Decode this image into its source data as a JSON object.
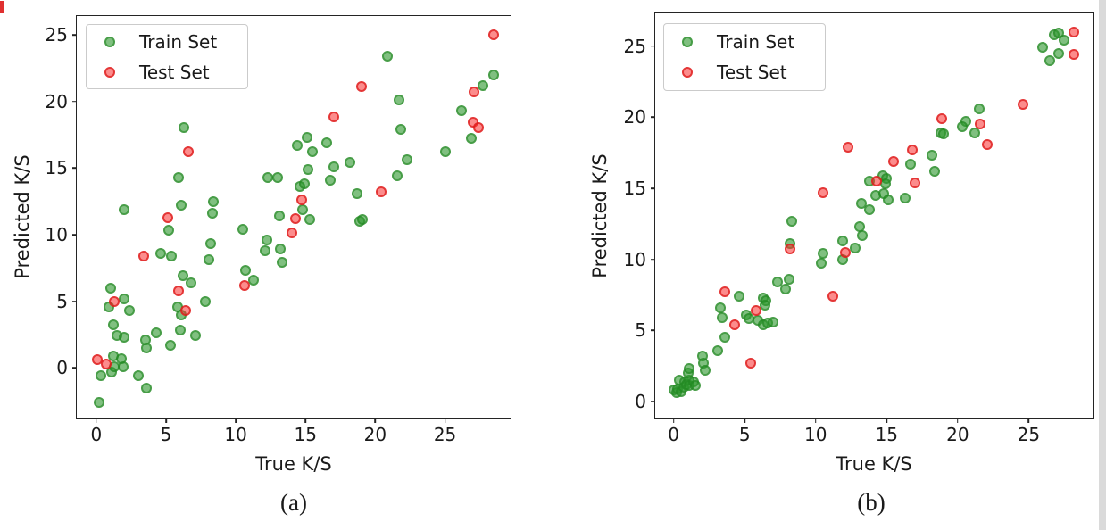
{
  "page": {
    "background": "#ffffff"
  },
  "colors": {
    "train_fill": "#6db96d",
    "train_edge": "#4a9e4a",
    "test_fill": "#f87070",
    "test_edge": "#e03535",
    "axis": "#242424"
  },
  "chart_data": [
    {
      "type": "scatter",
      "panel_caption": "(a)",
      "xlabel": "True K/S",
      "ylabel": "Predicted K/S",
      "xlim": [
        -1.4,
        29.7
      ],
      "ylim": [
        -3.8,
        26.4
      ],
      "xticks": [
        0,
        5,
        10,
        15,
        20,
        25
      ],
      "yticks": [
        0,
        5,
        10,
        15,
        20,
        25
      ],
      "grid": false,
      "legend_position": "upper left",
      "series": [
        {
          "name": "Train Set",
          "role": "train",
          "points": [
            [
              0.2,
              -2.6
            ],
            [
              0.3,
              -0.6
            ],
            [
              1.1,
              -0.3
            ],
            [
              1.3,
              0.1
            ],
            [
              1.9,
              0.1
            ],
            [
              1.2,
              0.9
            ],
            [
              1.8,
              0.7
            ],
            [
              3.0,
              -0.6
            ],
            [
              3.6,
              -1.5
            ],
            [
              1.5,
              2.4
            ],
            [
              2.0,
              2.3
            ],
            [
              1.2,
              3.2
            ],
            [
              3.5,
              2.1
            ],
            [
              3.6,
              1.5
            ],
            [
              4.3,
              2.6
            ],
            [
              5.3,
              1.7
            ],
            [
              6.0,
              2.8
            ],
            [
              7.1,
              2.4
            ],
            [
              0.9,
              4.6
            ],
            [
              1.0,
              6.0
            ],
            [
              2.0,
              5.2
            ],
            [
              2.4,
              4.3
            ],
            [
              5.8,
              4.6
            ],
            [
              6.1,
              4.0
            ],
            [
              7.8,
              5.0
            ],
            [
              6.2,
              6.9
            ],
            [
              6.8,
              6.4
            ],
            [
              4.6,
              8.6
            ],
            [
              5.4,
              8.4
            ],
            [
              8.1,
              8.1
            ],
            [
              8.2,
              9.3
            ],
            [
              5.2,
              10.3
            ],
            [
              2.0,
              11.9
            ],
            [
              6.1,
              12.2
            ],
            [
              8.4,
              12.5
            ],
            [
              8.3,
              11.6
            ],
            [
              5.9,
              14.3
            ],
            [
              6.3,
              18.0
            ],
            [
              10.5,
              10.4
            ],
            [
              10.7,
              7.3
            ],
            [
              11.3,
              6.6
            ],
            [
              12.2,
              9.6
            ],
            [
              12.1,
              8.8
            ],
            [
              13.2,
              8.9
            ],
            [
              13.3,
              7.9
            ],
            [
              12.3,
              14.3
            ],
            [
              13.0,
              14.3
            ],
            [
              13.1,
              11.4
            ],
            [
              14.8,
              11.9
            ],
            [
              15.3,
              11.1
            ],
            [
              14.6,
              13.6
            ],
            [
              14.9,
              13.8
            ],
            [
              14.4,
              16.7
            ],
            [
              15.1,
              17.3
            ],
            [
              15.5,
              16.2
            ],
            [
              16.5,
              16.9
            ],
            [
              15.2,
              14.9
            ],
            [
              17.0,
              15.1
            ],
            [
              16.8,
              14.1
            ],
            [
              18.2,
              15.4
            ],
            [
              18.7,
              13.1
            ],
            [
              18.9,
              11.0
            ],
            [
              19.1,
              11.1
            ],
            [
              20.9,
              23.4
            ],
            [
              21.7,
              20.1
            ],
            [
              21.8,
              17.9
            ],
            [
              21.6,
              14.4
            ],
            [
              22.3,
              15.6
            ],
            [
              25.0,
              16.2
            ],
            [
              26.2,
              19.3
            ],
            [
              26.9,
              17.2
            ],
            [
              27.7,
              21.2
            ],
            [
              28.5,
              22.0
            ]
          ]
        },
        {
          "name": "Test Set",
          "role": "test",
          "points": [
            [
              0.1,
              0.6
            ],
            [
              0.7,
              0.3
            ],
            [
              1.3,
              5.0
            ],
            [
              3.4,
              8.4
            ],
            [
              5.1,
              11.3
            ],
            [
              5.9,
              5.8
            ],
            [
              6.4,
              4.3
            ],
            [
              6.6,
              16.2
            ],
            [
              10.6,
              6.2
            ],
            [
              14.0,
              10.1
            ],
            [
              14.3,
              11.2
            ],
            [
              14.7,
              12.6
            ],
            [
              17.0,
              18.8
            ],
            [
              19.0,
              21.1
            ],
            [
              20.4,
              13.2
            ],
            [
              27.0,
              18.4
            ],
            [
              27.4,
              18.0
            ],
            [
              27.1,
              20.7
            ],
            [
              28.5,
              25.0
            ]
          ]
        }
      ]
    },
    {
      "type": "scatter",
      "panel_caption": "(b)",
      "xlabel": "True K/S",
      "ylabel": "Predicted K/S",
      "xlim": [
        -1.3,
        29.5
      ],
      "ylim": [
        -1.2,
        27.3
      ],
      "xticks": [
        0,
        5,
        10,
        15,
        20,
        25
      ],
      "yticks": [
        0,
        5,
        10,
        15,
        20,
        25
      ],
      "grid": false,
      "legend_position": "upper left",
      "series": [
        {
          "name": "Train Set",
          "role": "train",
          "points": [
            [
              0.0,
              0.8
            ],
            [
              0.2,
              0.6
            ],
            [
              0.3,
              0.9
            ],
            [
              0.4,
              1.5
            ],
            [
              0.5,
              0.7
            ],
            [
              0.7,
              1.0
            ],
            [
              0.8,
              1.4
            ],
            [
              0.9,
              1.2
            ],
            [
              1.1,
              1.5
            ],
            [
              1.1,
              1.1
            ],
            [
              1.4,
              1.4
            ],
            [
              1.5,
              1.1
            ],
            [
              1.0,
              2.0
            ],
            [
              1.1,
              2.3
            ],
            [
              2.0,
              3.2
            ],
            [
              2.1,
              2.7
            ],
            [
              2.2,
              2.2
            ],
            [
              3.1,
              3.6
            ],
            [
              3.6,
              4.5
            ],
            [
              3.3,
              6.6
            ],
            [
              3.4,
              5.9
            ],
            [
              4.6,
              7.4
            ],
            [
              5.1,
              6.1
            ],
            [
              5.3,
              5.8
            ],
            [
              5.9,
              5.7
            ],
            [
              6.3,
              5.4
            ],
            [
              6.6,
              5.5
            ],
            [
              7.0,
              5.6
            ],
            [
              6.3,
              7.3
            ],
            [
              6.5,
              7.1
            ],
            [
              6.4,
              6.8
            ],
            [
              7.3,
              8.4
            ],
            [
              8.1,
              8.6
            ],
            [
              7.9,
              7.9
            ],
            [
              8.3,
              12.7
            ],
            [
              8.2,
              11.1
            ],
            [
              10.5,
              10.4
            ],
            [
              10.4,
              9.7
            ],
            [
              11.9,
              11.3
            ],
            [
              11.9,
              10.0
            ],
            [
              12.8,
              10.8
            ],
            [
              13.1,
              12.3
            ],
            [
              13.3,
              11.7
            ],
            [
              13.2,
              13.9
            ],
            [
              13.8,
              13.5
            ],
            [
              13.8,
              15.5
            ],
            [
              14.2,
              14.5
            ],
            [
              14.8,
              14.6
            ],
            [
              15.1,
              14.2
            ],
            [
              14.7,
              15.9
            ],
            [
              15.0,
              15.7
            ],
            [
              14.9,
              15.3
            ],
            [
              16.3,
              14.3
            ],
            [
              16.7,
              16.7
            ],
            [
              18.2,
              17.3
            ],
            [
              18.4,
              16.2
            ],
            [
              18.8,
              18.9
            ],
            [
              19.0,
              18.8
            ],
            [
              20.6,
              19.7
            ],
            [
              20.3,
              19.3
            ],
            [
              21.2,
              18.9
            ],
            [
              21.5,
              20.6
            ],
            [
              26.0,
              24.9
            ],
            [
              26.5,
              24.0
            ],
            [
              26.8,
              25.8
            ],
            [
              27.1,
              25.9
            ],
            [
              27.5,
              25.4
            ],
            [
              27.1,
              24.5
            ]
          ]
        },
        {
          "name": "Test Set",
          "role": "test",
          "points": [
            [
              3.6,
              7.7
            ],
            [
              4.3,
              5.4
            ],
            [
              5.4,
              2.7
            ],
            [
              5.8,
              6.4
            ],
            [
              8.2,
              10.7
            ],
            [
              10.5,
              14.7
            ],
            [
              11.2,
              7.4
            ],
            [
              12.1,
              10.5
            ],
            [
              12.3,
              17.9
            ],
            [
              14.3,
              15.5
            ],
            [
              15.5,
              16.9
            ],
            [
              16.8,
              17.7
            ],
            [
              17.0,
              15.4
            ],
            [
              18.9,
              19.9
            ],
            [
              21.6,
              19.5
            ],
            [
              22.1,
              18.1
            ],
            [
              24.6,
              20.9
            ],
            [
              28.2,
              26.0
            ],
            [
              28.2,
              24.4
            ]
          ]
        }
      ]
    }
  ]
}
